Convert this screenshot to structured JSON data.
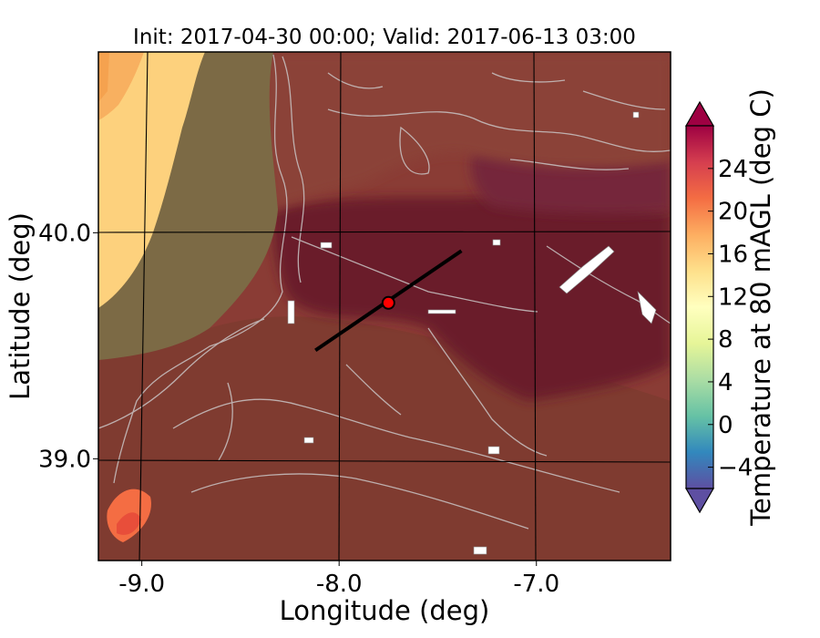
{
  "chart_data": {
    "type": "heatmap",
    "title": "Init: 2017-04-30 00:00; Valid: 2017-06-13 03:00",
    "xlabel": "Longitude (deg)",
    "ylabel": "Latitude (deg)",
    "xlim": [
      -9.22,
      -6.32
    ],
    "ylim": [
      38.55,
      40.8
    ],
    "x_ticks": [
      -9.0,
      -8.0,
      -7.0
    ],
    "x_tick_labels": [
      "-9.0",
      "-8.0",
      "-7.0"
    ],
    "y_ticks": [
      39.0,
      40.0
    ],
    "y_tick_labels": [
      "39.0",
      "40.0"
    ],
    "grid": true,
    "colorbar": {
      "label": "Temperature at 80 mAGL (deg C)",
      "min": -6,
      "max": 28,
      "ticks": [
        -4,
        0,
        4,
        8,
        12,
        16,
        20,
        24
      ],
      "tick_labels": [
        "−4",
        "0",
        "4",
        "8",
        "12",
        "16",
        "20",
        "24"
      ],
      "colormap": [
        "#5e4fa2",
        "#3288bd",
        "#66c2a5",
        "#abdda4",
        "#e6f598",
        "#ffffbf",
        "#fee08b",
        "#fdae61",
        "#f46d43",
        "#d53e4f",
        "#9e0142"
      ],
      "extend": "both"
    },
    "marker": {
      "lon": -7.75,
      "lat": 39.69,
      "color": "#ff0000"
    },
    "transect": {
      "start": {
        "lon": -8.12,
        "lat": 39.48
      },
      "end": {
        "lon": -7.38,
        "lat": 39.92
      },
      "color": "#000000"
    }
  }
}
